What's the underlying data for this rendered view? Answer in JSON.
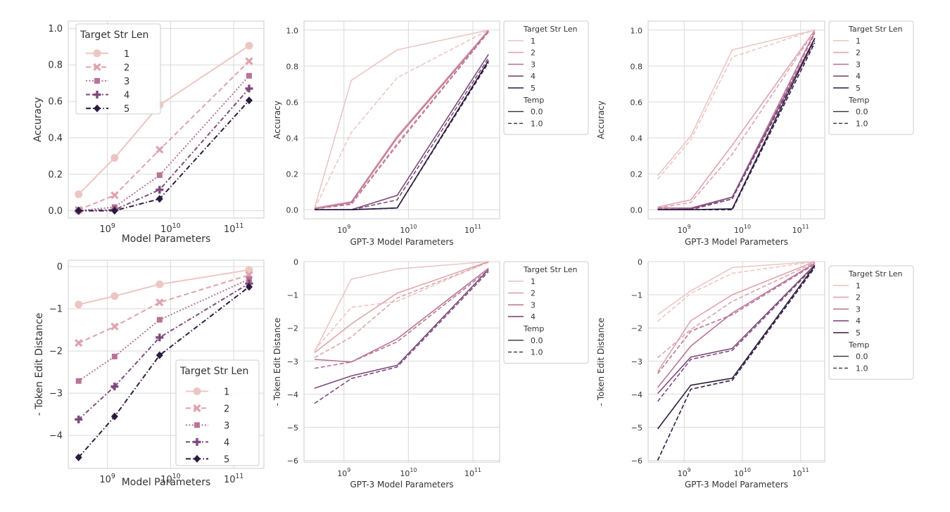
{
  "colors": {
    "len1": "#ecc6c3",
    "len2": "#dea3ad",
    "len3": "#b97496",
    "len4": "#7d4a7c",
    "len5": "#2d1b3f",
    "grid": "#d9d9d9",
    "axis": "#cccccc",
    "text": "#333333"
  },
  "chart_data": [
    {
      "type": "line",
      "xlabel": "Model Parameters",
      "ylabel": "Accuracy",
      "xscale": "log",
      "xlim": [
        240000000.0,
        300000000000.0
      ],
      "ylim": [
        -0.04,
        1.04
      ],
      "xticks": [
        1000000000.0,
        10000000000.0,
        100000000000.0
      ],
      "xtick_labels": [
        {
          "base": "10",
          "exp": "9"
        },
        {
          "base": "10",
          "exp": "10"
        },
        {
          "base": "10",
          "exp": "11"
        }
      ],
      "yticks": [
        0,
        0.2,
        0.4,
        0.6,
        0.8,
        1.0
      ],
      "ytick_labels": [
        "0.0",
        "0.2",
        "0.4",
        "0.6",
        "0.8",
        "1.0"
      ],
      "legend": {
        "title": "Target Str Len",
        "placement": "upper-left",
        "entries": [
          "1",
          "2",
          "3",
          "4",
          "5"
        ]
      },
      "x": [
        350000000.0,
        1300000000.0,
        6700000000.0,
        175000000000.0
      ],
      "series": [
        {
          "name": "1",
          "values": [
            0.09,
            0.29,
            0.58,
            0.905
          ]
        },
        {
          "name": "2",
          "values": [
            0.005,
            0.085,
            0.335,
            0.82
          ]
        },
        {
          "name": "3",
          "values": [
            0.0,
            0.02,
            0.195,
            0.74
          ]
        },
        {
          "name": "4",
          "values": [
            0.0,
            0.005,
            0.115,
            0.67
          ]
        },
        {
          "name": "5",
          "values": [
            0.0,
            0.0,
            0.065,
            0.605
          ]
        }
      ]
    },
    {
      "type": "line",
      "xlabel": "GPT-3 Model Parameters",
      "ylabel": "Accuracy",
      "xscale": "log",
      "xlim": [
        240000000.0,
        260000000000.0
      ],
      "ylim": [
        -0.05,
        1.05
      ],
      "xticks": [
        1000000000.0,
        10000000000.0,
        100000000000.0
      ],
      "xtick_labels": [
        {
          "base": "10",
          "exp": "9"
        },
        {
          "base": "10",
          "exp": "10"
        },
        {
          "base": "10",
          "exp": "11"
        }
      ],
      "yticks": [
        0,
        0.2,
        0.4,
        0.6,
        0.8,
        1.0
      ],
      "ytick_labels": [
        "0.0",
        "0.2",
        "0.4",
        "0.6",
        "0.8",
        "1.0"
      ],
      "legend": {
        "title": "Target Str Len",
        "style_title": "Temp",
        "placement": "outside-right",
        "entries": [
          "1",
          "2",
          "3",
          "4",
          "5"
        ],
        "style_entries": [
          "0.0",
          "1.0"
        ]
      },
      "x": [
        350000000.0,
        1300000000.0,
        6700000000.0,
        175000000000.0
      ],
      "series": [
        {
          "name": "1",
          "temp": "0.0",
          "values": [
            0.01,
            0.72,
            0.89,
            1.0
          ]
        },
        {
          "name": "1",
          "temp": "1.0",
          "values": [
            0.005,
            0.43,
            0.735,
            1.0
          ]
        },
        {
          "name": "2",
          "temp": "0.0",
          "values": [
            0.01,
            0.045,
            0.41,
            1.0
          ]
        },
        {
          "name": "2",
          "temp": "1.0",
          "values": [
            0.005,
            0.035,
            0.37,
            0.995
          ]
        },
        {
          "name": "3",
          "temp": "0.0",
          "values": [
            0.005,
            0.04,
            0.4,
            0.995
          ]
        },
        {
          "name": "3",
          "temp": "1.0",
          "values": [
            0.005,
            0.03,
            0.36,
            0.99
          ]
        },
        {
          "name": "4",
          "temp": "0.0",
          "values": [
            0.0,
            0.0,
            0.08,
            0.865
          ]
        },
        {
          "name": "4",
          "temp": "1.0",
          "values": [
            0.0,
            0.0,
            0.055,
            0.845
          ]
        },
        {
          "name": "5",
          "temp": "0.0",
          "values": [
            0.0,
            0.0,
            0.01,
            0.83
          ]
        },
        {
          "name": "5",
          "temp": "1.0",
          "values": [
            0.0,
            0.0,
            0.01,
            0.82
          ]
        }
      ]
    },
    {
      "type": "line",
      "xlabel": "GPT-3 Model Parameters",
      "ylabel": "Accuracy",
      "xscale": "log",
      "xlim": [
        240000000.0,
        260000000000.0
      ],
      "ylim": [
        -0.05,
        1.05
      ],
      "xticks": [
        1000000000.0,
        10000000000.0,
        100000000000.0
      ],
      "xtick_labels": [
        {
          "base": "10",
          "exp": "9"
        },
        {
          "base": "10",
          "exp": "10"
        },
        {
          "base": "10",
          "exp": "11"
        }
      ],
      "yticks": [
        0,
        0.2,
        0.4,
        0.6,
        0.8,
        1.0
      ],
      "ytick_labels": [
        "0.0",
        "0.2",
        "0.4",
        "0.6",
        "0.8",
        "1.0"
      ],
      "legend": {
        "title": "Target Str Len",
        "style_title": "Temp",
        "placement": "outside-right",
        "entries": [
          "1",
          "2",
          "3",
          "4",
          "5"
        ],
        "style_entries": [
          "0.0",
          "1.0"
        ]
      },
      "x": [
        350000000.0,
        1300000000.0,
        6700000000.0,
        175000000000.0
      ],
      "series": [
        {
          "name": "1",
          "temp": "0.0",
          "values": [
            0.19,
            0.41,
            0.89,
            1.0
          ]
        },
        {
          "name": "1",
          "temp": "1.0",
          "values": [
            0.17,
            0.39,
            0.85,
            1.0
          ]
        },
        {
          "name": "2",
          "temp": "0.0",
          "values": [
            0.015,
            0.055,
            0.36,
            1.0
          ]
        },
        {
          "name": "2",
          "temp": "1.0",
          "values": [
            0.01,
            0.04,
            0.31,
            0.995
          ]
        },
        {
          "name": "3",
          "temp": "0.0",
          "values": [
            0.01,
            0.01,
            0.07,
            0.99
          ]
        },
        {
          "name": "3",
          "temp": "1.0",
          "values": [
            0.005,
            0.005,
            0.06,
            0.98
          ]
        },
        {
          "name": "4",
          "temp": "0.0",
          "values": [
            0.0,
            0.005,
            0.07,
            0.955
          ]
        },
        {
          "name": "4",
          "temp": "1.0",
          "values": [
            0.0,
            0.0,
            0.06,
            0.94
          ]
        },
        {
          "name": "5",
          "temp": "0.0",
          "values": [
            0.0,
            0.0,
            0.005,
            0.955
          ]
        },
        {
          "name": "5",
          "temp": "1.0",
          "values": [
            0.0,
            0.0,
            0.0,
            0.93
          ]
        }
      ]
    },
    {
      "type": "line",
      "xlabel": "Model Parameters",
      "ylabel": "- Token Edit Distance",
      "xscale": "log",
      "xlim": [
        240000000.0,
        300000000000.0
      ],
      "ylim": [
        -4.78,
        0.15
      ],
      "xticks": [
        1000000000.0,
        10000000000.0,
        100000000000.0
      ],
      "xtick_labels": [
        {
          "base": "10",
          "exp": "9"
        },
        {
          "base": "10",
          "exp": "10"
        },
        {
          "base": "10",
          "exp": "11"
        }
      ],
      "yticks": [
        0,
        -1,
        -2,
        -3,
        -4
      ],
      "ytick_labels": [
        "0",
        "−1",
        "−2",
        "−3",
        "−4"
      ],
      "legend": {
        "title": "Target Str Len",
        "placement": "lower-right",
        "entries": [
          "1",
          "2",
          "3",
          "4",
          "5"
        ]
      },
      "x": [
        350000000.0,
        1300000000.0,
        6700000000.0,
        175000000000.0
      ],
      "series": [
        {
          "name": "1",
          "values": [
            -0.9,
            -0.7,
            -0.42,
            -0.08
          ]
        },
        {
          "name": "2",
          "values": [
            -1.81,
            -1.42,
            -0.85,
            -0.2
          ]
        },
        {
          "name": "3",
          "values": [
            -2.71,
            -2.13,
            -1.26,
            -0.3
          ]
        },
        {
          "name": "4",
          "values": [
            -3.62,
            -2.84,
            -1.68,
            -0.4
          ]
        },
        {
          "name": "5",
          "values": [
            -4.52,
            -3.55,
            -2.1,
            -0.48
          ]
        }
      ]
    },
    {
      "type": "line",
      "xlabel": "GPT-3 Model Parameters",
      "ylabel": "- Token Edit Distance",
      "xscale": "log",
      "xlim": [
        240000000.0,
        260000000000.0
      ],
      "ylim": [
        -6.05,
        0.0
      ],
      "xticks": [
        1000000000.0,
        10000000000.0,
        100000000000.0
      ],
      "xtick_labels": [
        {
          "base": "10",
          "exp": "9"
        },
        {
          "base": "10",
          "exp": "10"
        },
        {
          "base": "10",
          "exp": "11"
        }
      ],
      "yticks": [
        0,
        -1,
        -2,
        -3,
        -4,
        -5,
        -6
      ],
      "ytick_labels": [
        "0",
        "−1",
        "−2",
        "−3",
        "−4",
        "−5",
        "−6"
      ],
      "legend": {
        "title": "Target Str Len",
        "style_title": "Temp",
        "placement": "outside-right",
        "entries": [
          "1",
          "2",
          "3",
          "4"
        ],
        "style_entries": [
          "0.0",
          "1.0"
        ]
      },
      "x": [
        350000000.0,
        1300000000.0,
        6700000000.0,
        175000000000.0
      ],
      "series": [
        {
          "name": "1",
          "temp": "0.0",
          "values": [
            -2.72,
            -0.53,
            -0.22,
            0.0
          ]
        },
        {
          "name": "1",
          "temp": "1.0",
          "values": [
            -2.68,
            -1.38,
            -1.2,
            0.0
          ]
        },
        {
          "name": "2",
          "temp": "0.0",
          "values": [
            -2.75,
            -1.88,
            -0.95,
            0.0
          ]
        },
        {
          "name": "2",
          "temp": "1.0",
          "values": [
            -2.9,
            -2.28,
            -1.1,
            -0.02
          ]
        },
        {
          "name": "3",
          "temp": "0.0",
          "values": [
            -2.95,
            -3.03,
            -2.33,
            -0.2
          ]
        },
        {
          "name": "3",
          "temp": "1.0",
          "values": [
            -3.22,
            -3.03,
            -2.42,
            -0.25
          ]
        },
        {
          "name": "4",
          "temp": "0.0",
          "values": [
            -3.82,
            -3.45,
            -3.13,
            -0.24
          ]
        },
        {
          "name": "4",
          "temp": "1.0",
          "values": [
            -4.28,
            -3.53,
            -3.18,
            -0.3
          ]
        }
      ]
    },
    {
      "type": "line",
      "xlabel": "GPT-3 Model Parameters",
      "ylabel": "- Token Edit Distance",
      "xscale": "log",
      "xlim": [
        240000000.0,
        260000000000.0
      ],
      "ylim": [
        -6.05,
        0.0
      ],
      "xticks": [
        1000000000.0,
        10000000000.0,
        100000000000.0
      ],
      "xtick_labels": [
        {
          "base": "10",
          "exp": "9"
        },
        {
          "base": "10",
          "exp": "10"
        },
        {
          "base": "10",
          "exp": "11"
        }
      ],
      "yticks": [
        0,
        -1,
        -2,
        -3,
        -4,
        -5,
        -6
      ],
      "ytick_labels": [
        "0",
        "−1",
        "−2",
        "−3",
        "−4",
        "−5",
        "−6"
      ],
      "legend": {
        "title": "Target Str Len",
        "style_title": "Temp",
        "placement": "outside-right",
        "entries": [
          "1",
          "2",
          "3",
          "4",
          "5"
        ],
        "style_entries": [
          "0.0",
          "1.0"
        ]
      },
      "x": [
        350000000.0,
        1300000000.0,
        6700000000.0,
        175000000000.0
      ],
      "series": [
        {
          "name": "1",
          "temp": "0.0",
          "values": [
            -1.6,
            -0.88,
            -0.18,
            0.0
          ]
        },
        {
          "name": "1",
          "temp": "1.0",
          "values": [
            -1.8,
            -0.96,
            -0.35,
            0.0
          ]
        },
        {
          "name": "2",
          "temp": "0.0",
          "values": [
            -3.32,
            -1.78,
            -1.0,
            0.0
          ]
        },
        {
          "name": "2",
          "temp": "1.0",
          "values": [
            -2.9,
            -2.05,
            -1.2,
            -0.03
          ]
        },
        {
          "name": "3",
          "temp": "0.0",
          "values": [
            -3.8,
            -2.55,
            -1.55,
            -0.05
          ]
        },
        {
          "name": "3",
          "temp": "1.0",
          "values": [
            -3.38,
            -2.1,
            -1.6,
            -0.08
          ]
        },
        {
          "name": "4",
          "temp": "0.0",
          "values": [
            -3.98,
            -2.88,
            -2.62,
            -0.1
          ]
        },
        {
          "name": "4",
          "temp": "1.0",
          "values": [
            -4.22,
            -2.95,
            -2.68,
            -0.14
          ]
        },
        {
          "name": "5",
          "temp": "0.0",
          "values": [
            -5.05,
            -3.73,
            -3.52,
            -0.12
          ]
        },
        {
          "name": "5",
          "temp": "1.0",
          "values": [
            -6.0,
            -3.85,
            -3.58,
            -0.18
          ]
        }
      ]
    }
  ]
}
